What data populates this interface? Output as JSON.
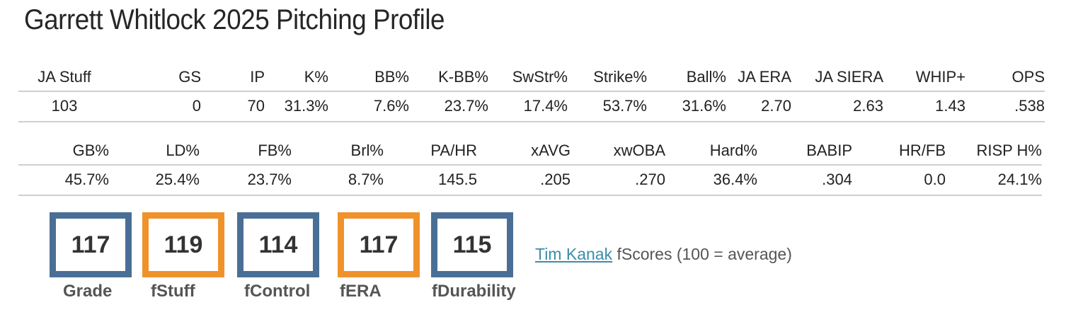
{
  "title": "Garrett Whitlock 2025 Pitching Profile",
  "table1": {
    "headers": [
      "JA Stuff",
      "GS",
      "IP",
      "K%",
      "BB%",
      "K-BB%",
      "SwStr%",
      "Strike%",
      "Ball%",
      "JA ERA",
      "JA SIERA",
      "WHIP+",
      "OPS"
    ],
    "values": [
      "103",
      "0",
      "70",
      "31.3%",
      "7.6%",
      "23.7%",
      "17.4%",
      "53.7%",
      "31.6%",
      "2.70",
      "2.63",
      "1.43",
      ".538"
    ]
  },
  "table2": {
    "headers": [
      "GB%",
      "LD%",
      "FB%",
      "Brl%",
      "PA/HR",
      "xAVG",
      "xwOBA",
      "Hard%",
      "BABIP",
      "HR/FB",
      "RISP H%"
    ],
    "values": [
      "45.7%",
      "25.4%",
      "23.7%",
      "8.7%",
      "145.5",
      ".205",
      ".270",
      "36.4%",
      ".304",
      "0.0",
      "24.1%"
    ]
  },
  "scores": [
    {
      "label": "Grade",
      "value": "117",
      "color": "#4a6f96"
    },
    {
      "label": "fStuff",
      "value": "119",
      "color": "#f0922c"
    },
    {
      "label": "fControl",
      "value": "114",
      "color": "#4a6f96"
    },
    {
      "label": "fERA",
      "value": "117",
      "color": "#f0922c"
    },
    {
      "label": "fDurability",
      "value": "115",
      "color": "#4a6f96"
    }
  ],
  "credit": {
    "link_text": "Tim Kanak",
    "text": " fScores (100 = average)"
  }
}
